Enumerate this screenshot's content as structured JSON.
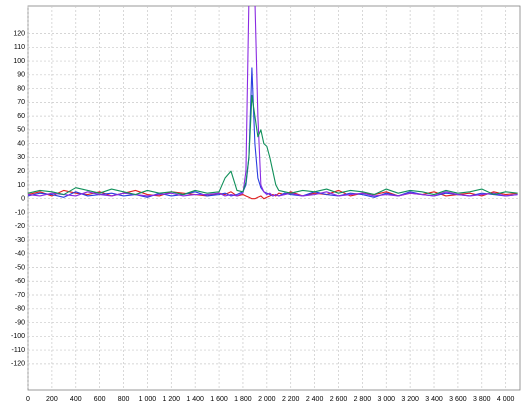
{
  "chart_data": {
    "type": "line",
    "x": [
      0,
      100,
      200,
      300,
      400,
      500,
      600,
      700,
      800,
      900,
      1000,
      1100,
      1200,
      1300,
      1400,
      1500,
      1600,
      1650,
      1700,
      1750,
      1800,
      1825,
      1850,
      1875,
      1900,
      1925,
      1950,
      1975,
      2000,
      2025,
      2050,
      2075,
      2100,
      2150,
      2200,
      2300,
      2400,
      2500,
      2600,
      2700,
      2800,
      2900,
      3000,
      3100,
      3200,
      3300,
      3400,
      3500,
      3600,
      3700,
      3800,
      3900,
      4000,
      4100
    ],
    "series": [
      {
        "color": "#e02020",
        "values": [
          3,
          5,
          2,
          6,
          4,
          3,
          5,
          2,
          4,
          6,
          3,
          2,
          5,
          4,
          3,
          2,
          4,
          3,
          5,
          2,
          3,
          2,
          1,
          0,
          0,
          1,
          2,
          0,
          1,
          2,
          3,
          2,
          4,
          3,
          5,
          2,
          4,
          3,
          6,
          2,
          4,
          3,
          5,
          2,
          4,
          3,
          5,
          2,
          3,
          4,
          2,
          5,
          3,
          4
        ]
      },
      {
        "color": "#2a3fe0",
        "values": [
          2,
          4,
          3,
          1,
          5,
          2,
          3,
          4,
          2,
          3,
          1,
          4,
          2,
          3,
          5,
          2,
          3,
          4,
          2,
          3,
          5,
          10,
          30,
          95,
          40,
          15,
          8,
          5,
          4,
          3,
          2,
          3,
          2,
          4,
          3,
          2,
          5,
          3,
          2,
          4,
          3,
          1,
          4,
          2,
          5,
          3,
          2,
          4,
          3,
          2,
          4,
          3,
          2,
          3
        ]
      },
      {
        "color": "#8a2be2",
        "values": [
          3,
          2,
          4,
          3,
          2,
          5,
          3,
          2,
          4,
          3,
          2,
          3,
          4,
          2,
          3,
          3,
          4,
          2,
          3,
          2,
          4,
          20,
          145,
          145,
          145,
          60,
          10,
          5,
          3,
          4,
          2,
          3,
          2,
          3,
          4,
          2,
          3,
          5,
          2,
          3,
          4,
          2,
          3,
          2,
          4,
          3,
          2,
          5,
          3,
          2,
          3,
          4,
          2,
          3
        ]
      },
      {
        "color": "#10905a",
        "values": [
          4,
          6,
          5,
          3,
          8,
          6,
          4,
          7,
          5,
          3,
          6,
          4,
          5,
          3,
          6,
          4,
          5,
          15,
          20,
          6,
          5,
          12,
          30,
          75,
          60,
          45,
          50,
          40,
          38,
          30,
          20,
          10,
          6,
          5,
          4,
          6,
          5,
          7,
          4,
          6,
          5,
          3,
          7,
          4,
          6,
          5,
          3,
          6,
          4,
          5,
          7,
          3,
          5,
          4
        ]
      }
    ],
    "xlim": [
      0,
      4120
    ],
    "ylim": [
      -139,
      140
    ],
    "xticks": [
      0,
      200,
      400,
      600,
      800,
      {
        "value": 1000,
        "label": "1 000"
      },
      {
        "value": 1200,
        "label": "1 200"
      },
      {
        "value": 1400,
        "label": "1 400"
      },
      {
        "value": 1600,
        "label": "1 600"
      },
      {
        "value": 1800,
        "label": "1 800"
      },
      {
        "value": 2000,
        "label": "2 000"
      },
      {
        "value": 2200,
        "label": "2 200"
      },
      {
        "value": 2400,
        "label": "2 400"
      },
      {
        "value": 2600,
        "label": "2 600"
      },
      {
        "value": 2800,
        "label": "2 800"
      },
      {
        "value": 3000,
        "label": "3 000"
      },
      {
        "value": 3200,
        "label": "3 200"
      },
      {
        "value": 3400,
        "label": "3 400"
      },
      {
        "value": 3600,
        "label": "3 600"
      },
      {
        "value": 3800,
        "label": "3 800"
      },
      {
        "value": 4000,
        "label": "4 000"
      }
    ],
    "yticks": [
      -120,
      -110,
      -100,
      -90,
      -80,
      -70,
      -60,
      -50,
      -40,
      -30,
      -20,
      -10,
      0,
      10,
      20,
      30,
      40,
      50,
      60,
      70,
      80,
      90,
      100,
      110,
      120
    ],
    "grid": true
  }
}
